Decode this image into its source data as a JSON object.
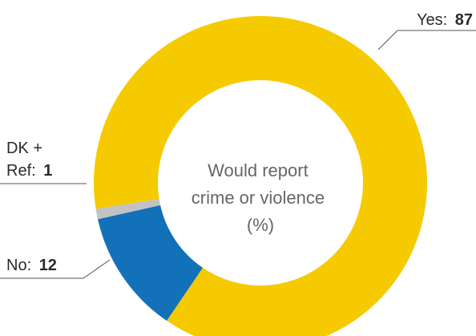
{
  "chart_data": {
    "type": "pie",
    "style": "donut",
    "center_label": [
      "Would report",
      "crime or violence",
      "(%)"
    ],
    "slices": [
      {
        "label": "Yes",
        "value": 87,
        "color": "#F6CA00"
      },
      {
        "label": "No",
        "value": 12,
        "color": "#1271B9"
      },
      {
        "label": "DK + Ref",
        "value": 1,
        "color": "#C2C2C2"
      }
    ],
    "callouts": {
      "yes": {
        "label": "Yes:",
        "value": "87"
      },
      "no": {
        "label": "No:",
        "value": "12"
      },
      "dk": {
        "line1": "DK +",
        "label": "Ref:",
        "value": "1"
      }
    }
  }
}
